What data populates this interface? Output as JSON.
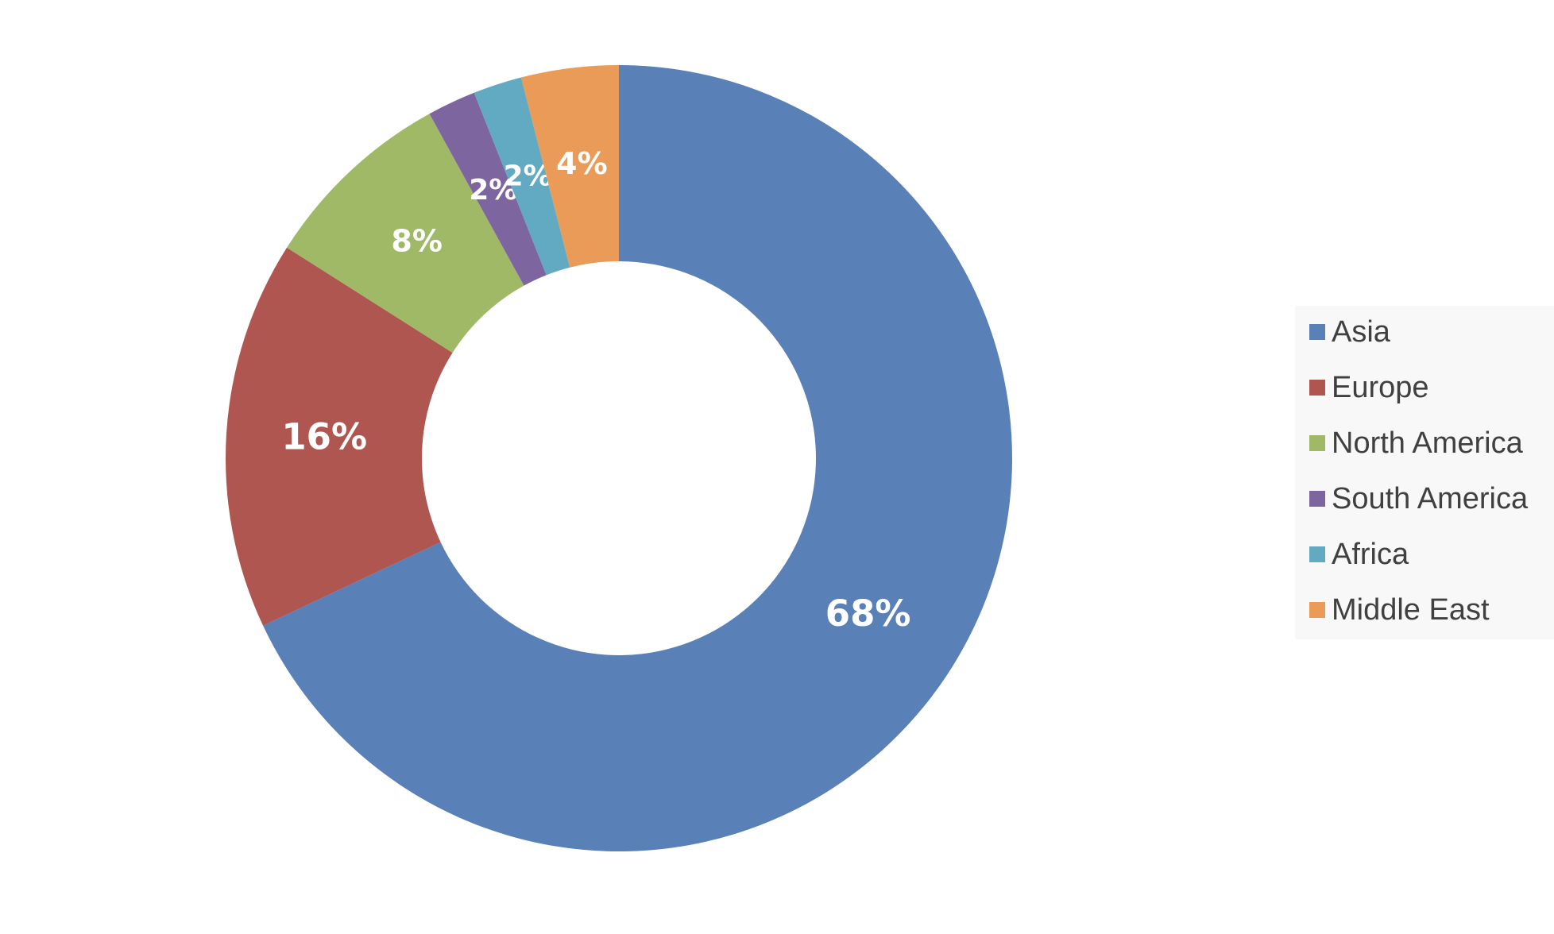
{
  "chart_data": {
    "type": "donut",
    "categories": [
      "Asia",
      "Europe",
      "North America",
      "South America",
      "Africa",
      "Middle East"
    ],
    "values": [
      68,
      16,
      8,
      2,
      2,
      4
    ],
    "value_labels": [
      "68%",
      "16%",
      "8%",
      "2%",
      "2%",
      "4%"
    ],
    "colors": [
      "#5a80b8",
      "#b05650",
      "#a0b966",
      "#7d66a0",
      "#62a9c2",
      "#e99b57"
    ],
    "legend": "right"
  }
}
